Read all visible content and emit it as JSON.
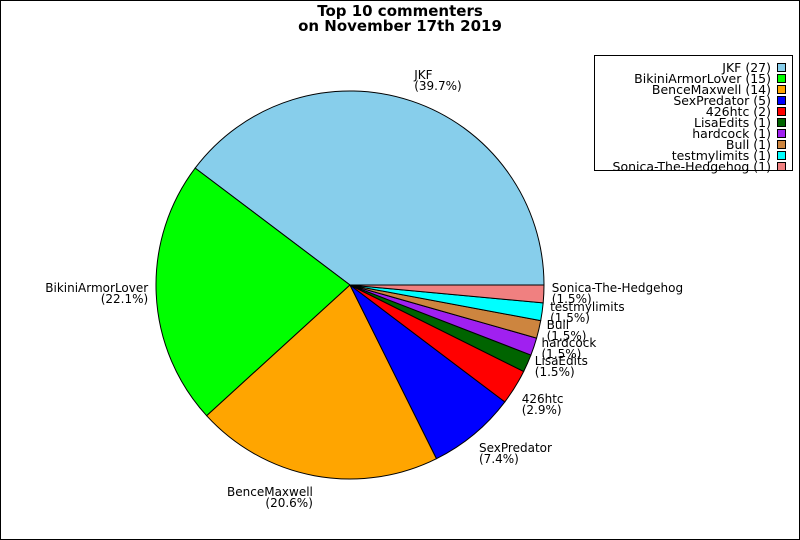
{
  "chart_data": {
    "type": "pie",
    "title_lines": [
      "Top 10 commenters",
      "on November 17th 2019"
    ],
    "legend_placement": "top-right",
    "slices": [
      {
        "name": "JKF",
        "value": 27,
        "percent": "(39.7%)",
        "legend": "JKF (27)",
        "color": "#87ceeb"
      },
      {
        "name": "BikiniArmorLover",
        "value": 15,
        "percent": "(22.1%)",
        "legend": "BikiniArmorLover (15)",
        "color": "#00ff00"
      },
      {
        "name": "BenceMaxwell",
        "value": 14,
        "percent": "(20.6%)",
        "legend": "BenceMaxwell (14)",
        "color": "#ffa500"
      },
      {
        "name": "SexPredator",
        "value": 5,
        "percent": "(7.4%)",
        "legend": "SexPredator (5)",
        "color": "#0000ff"
      },
      {
        "name": "426htc",
        "value": 2,
        "percent": "(2.9%)",
        "legend": "426htc (2)",
        "color": "#ff0000"
      },
      {
        "name": "LisaEdits",
        "value": 1,
        "percent": "(1.5%)",
        "legend": "LisaEdits (1)",
        "color": "#006400"
      },
      {
        "name": "hardcock",
        "value": 1,
        "percent": "(1.5%)",
        "legend": "hardcock (1)",
        "color": "#a020f0"
      },
      {
        "name": "Bull",
        "value": 1,
        "percent": "(1.5%)",
        "legend": "Bull (1)",
        "color": "#cd853f"
      },
      {
        "name": "testmylimits",
        "value": 1,
        "percent": "(1.5%)",
        "legend": "testmylimits (1)",
        "color": "#00ffff"
      },
      {
        "name": "Sonica-The-Hedgehog",
        "value": 1,
        "percent": "(1.5%)",
        "legend": "Sonica-The-Hedgehog (1)",
        "color": "#f08080"
      }
    ]
  }
}
